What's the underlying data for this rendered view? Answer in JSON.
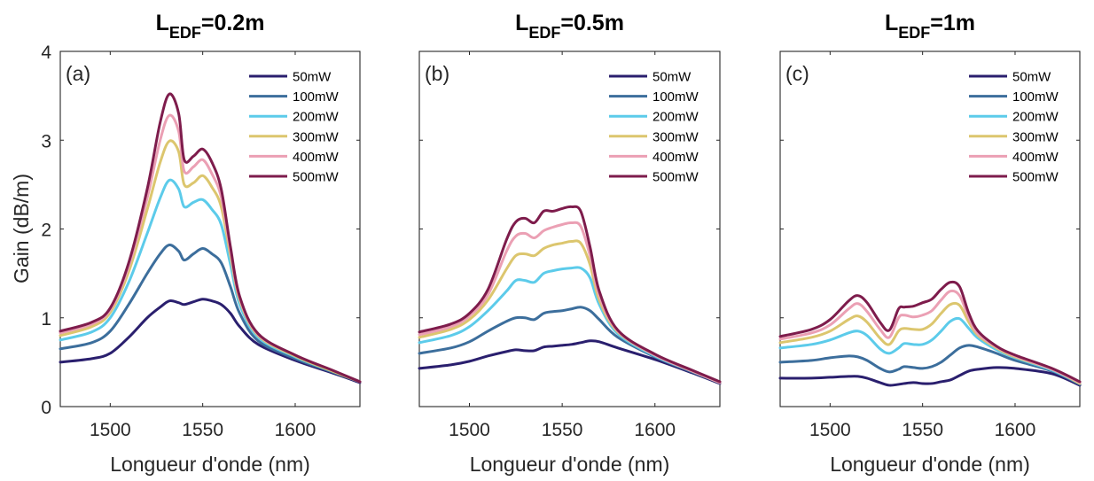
{
  "series_names": [
    "50mW",
    "100mW",
    "200mW",
    "300mW",
    "400mW",
    "500mW"
  ],
  "colors": [
    "#2a1f6e",
    "#3c6e9c",
    "#5ccbea",
    "#dcc66e",
    "#eba0b4",
    "#7e1c4c"
  ],
  "xlabel": "Longueur d'onde (nm)",
  "ylabel": "Gain (dB/m)",
  "xticks": [
    "1500",
    "1550",
    "1600"
  ],
  "yticks": [
    "0",
    "1",
    "2",
    "3",
    "4"
  ],
  "panels": [
    {
      "title_main": "L",
      "title_sub": "EDF",
      "title_rest": "=0.2m",
      "label": "(a)"
    },
    {
      "title_main": "L",
      "title_sub": "EDF",
      "title_rest": "=0.5m",
      "label": "(b)"
    },
    {
      "title_main": "L",
      "title_sub": "EDF",
      "title_rest": "=1m",
      "label": "(c)"
    }
  ],
  "chart_data": [
    {
      "type": "line",
      "title": "LEDF=0.2m",
      "xlabel": "Longueur d'onde (nm)",
      "ylabel": "Gain (dB/m)",
      "xlim": [
        1473,
        1635
      ],
      "ylim": [
        0,
        4
      ],
      "legend": "top-right",
      "x": [
        1473,
        1490,
        1500,
        1510,
        1520,
        1527,
        1532,
        1537,
        1540,
        1545,
        1550,
        1555,
        1560,
        1565,
        1570,
        1580,
        1600,
        1620,
        1635
      ],
      "series": [
        {
          "name": "50mW",
          "values": [
            0.5,
            0.54,
            0.6,
            0.78,
            1.0,
            1.12,
            1.19,
            1.17,
            1.15,
            1.18,
            1.21,
            1.19,
            1.15,
            1.05,
            0.9,
            0.7,
            0.52,
            0.38,
            0.27
          ]
        },
        {
          "name": "100mW",
          "values": [
            0.65,
            0.72,
            0.85,
            1.15,
            1.5,
            1.72,
            1.82,
            1.75,
            1.65,
            1.72,
            1.78,
            1.72,
            1.62,
            1.35,
            1.05,
            0.74,
            0.54,
            0.39,
            0.28
          ]
        },
        {
          "name": "200mW",
          "values": [
            0.75,
            0.84,
            1.0,
            1.4,
            1.95,
            2.35,
            2.55,
            2.45,
            2.25,
            2.3,
            2.33,
            2.22,
            2.05,
            1.6,
            1.15,
            0.78,
            0.56,
            0.4,
            0.28
          ]
        },
        {
          "name": "300mW",
          "values": [
            0.8,
            0.9,
            1.06,
            1.52,
            2.22,
            2.75,
            2.99,
            2.87,
            2.5,
            2.52,
            2.6,
            2.47,
            2.25,
            1.7,
            1.2,
            0.8,
            0.57,
            0.4,
            0.28
          ]
        },
        {
          "name": "400mW",
          "values": [
            0.83,
            0.93,
            1.09,
            1.58,
            2.35,
            3.0,
            3.28,
            3.1,
            2.65,
            2.7,
            2.78,
            2.62,
            2.36,
            1.75,
            1.22,
            0.81,
            0.58,
            0.41,
            0.28
          ]
        },
        {
          "name": "500mW",
          "values": [
            0.85,
            0.95,
            1.11,
            1.62,
            2.45,
            3.2,
            3.52,
            3.3,
            2.78,
            2.82,
            2.9,
            2.75,
            2.45,
            1.8,
            1.24,
            0.82,
            0.58,
            0.41,
            0.28
          ]
        }
      ]
    },
    {
      "type": "line",
      "title": "LEDF=0.5m",
      "xlabel": "Longueur d'onde (nm)",
      "ylabel": "",
      "xlim": [
        1473,
        1635
      ],
      "ylim": [
        0,
        4
      ],
      "legend": "top-right",
      "x": [
        1473,
        1490,
        1500,
        1510,
        1520,
        1525,
        1530,
        1535,
        1540,
        1545,
        1550,
        1555,
        1560,
        1565,
        1570,
        1580,
        1600,
        1620,
        1635
      ],
      "series": [
        {
          "name": "50mW",
          "values": [
            0.43,
            0.47,
            0.51,
            0.57,
            0.62,
            0.64,
            0.63,
            0.63,
            0.67,
            0.68,
            0.69,
            0.7,
            0.72,
            0.74,
            0.73,
            0.66,
            0.53,
            0.38,
            0.26
          ]
        },
        {
          "name": "100mW",
          "values": [
            0.6,
            0.66,
            0.73,
            0.85,
            0.96,
            1.0,
            1.0,
            0.98,
            1.05,
            1.07,
            1.08,
            1.1,
            1.12,
            1.08,
            0.98,
            0.78,
            0.56,
            0.39,
            0.27
          ]
        },
        {
          "name": "200mW",
          "values": [
            0.72,
            0.8,
            0.9,
            1.08,
            1.3,
            1.42,
            1.42,
            1.4,
            1.5,
            1.53,
            1.55,
            1.56,
            1.56,
            1.45,
            1.15,
            0.82,
            0.57,
            0.4,
            0.27
          ]
        },
        {
          "name": "300mW",
          "values": [
            0.78,
            0.87,
            0.98,
            1.2,
            1.55,
            1.7,
            1.72,
            1.7,
            1.78,
            1.82,
            1.84,
            1.86,
            1.84,
            1.6,
            1.2,
            0.84,
            0.58,
            0.4,
            0.27
          ]
        },
        {
          "name": "400mW",
          "values": [
            0.81,
            0.9,
            1.02,
            1.26,
            1.75,
            1.92,
            1.95,
            1.9,
            1.98,
            2.02,
            2.05,
            2.07,
            2.03,
            1.7,
            1.25,
            0.85,
            0.58,
            0.4,
            0.27
          ]
        },
        {
          "name": "500mW",
          "values": [
            0.84,
            0.93,
            1.05,
            1.32,
            1.88,
            2.08,
            2.12,
            2.07,
            2.2,
            2.2,
            2.23,
            2.25,
            2.2,
            1.8,
            1.3,
            0.86,
            0.59,
            0.41,
            0.28
          ]
        }
      ]
    },
    {
      "type": "line",
      "title": "LEDF=1m",
      "xlabel": "Longueur d'onde (nm)",
      "ylabel": "",
      "xlim": [
        1473,
        1635
      ],
      "ylim": [
        0,
        4
      ],
      "legend": "top-right",
      "x": [
        1473,
        1490,
        1500,
        1510,
        1515,
        1520,
        1527,
        1532,
        1537,
        1540,
        1545,
        1550,
        1555,
        1560,
        1565,
        1570,
        1575,
        1580,
        1590,
        1600,
        1620,
        1635
      ],
      "series": [
        {
          "name": "50mW",
          "values": [
            0.32,
            0.32,
            0.33,
            0.34,
            0.34,
            0.32,
            0.27,
            0.24,
            0.25,
            0.26,
            0.27,
            0.26,
            0.26,
            0.28,
            0.3,
            0.35,
            0.4,
            0.42,
            0.44,
            0.43,
            0.37,
            0.24
          ]
        },
        {
          "name": "100mW",
          "values": [
            0.5,
            0.52,
            0.55,
            0.57,
            0.56,
            0.52,
            0.43,
            0.39,
            0.42,
            0.45,
            0.44,
            0.43,
            0.45,
            0.5,
            0.58,
            0.66,
            0.69,
            0.67,
            0.6,
            0.52,
            0.4,
            0.25
          ]
        },
        {
          "name": "200mW",
          "values": [
            0.66,
            0.7,
            0.75,
            0.83,
            0.85,
            0.8,
            0.65,
            0.6,
            0.66,
            0.71,
            0.7,
            0.7,
            0.75,
            0.85,
            0.96,
            0.99,
            0.88,
            0.77,
            0.64,
            0.55,
            0.41,
            0.26
          ]
        },
        {
          "name": "300mW",
          "values": [
            0.72,
            0.78,
            0.85,
            0.98,
            1.02,
            0.95,
            0.77,
            0.7,
            0.85,
            0.88,
            0.87,
            0.87,
            0.93,
            1.05,
            1.15,
            1.14,
            0.95,
            0.8,
            0.66,
            0.56,
            0.42,
            0.26
          ]
        },
        {
          "name": "400mW",
          "values": [
            0.76,
            0.83,
            0.92,
            1.1,
            1.16,
            1.07,
            0.87,
            0.78,
            1.0,
            1.03,
            1.01,
            1.03,
            1.08,
            1.2,
            1.3,
            1.25,
            1.0,
            0.82,
            0.67,
            0.57,
            0.42,
            0.27
          ]
        },
        {
          "name": "500mW",
          "values": [
            0.79,
            0.87,
            0.98,
            1.19,
            1.25,
            1.17,
            0.95,
            0.86,
            1.1,
            1.12,
            1.13,
            1.17,
            1.21,
            1.32,
            1.4,
            1.35,
            1.05,
            0.85,
            0.68,
            0.58,
            0.43,
            0.28
          ]
        }
      ]
    }
  ]
}
